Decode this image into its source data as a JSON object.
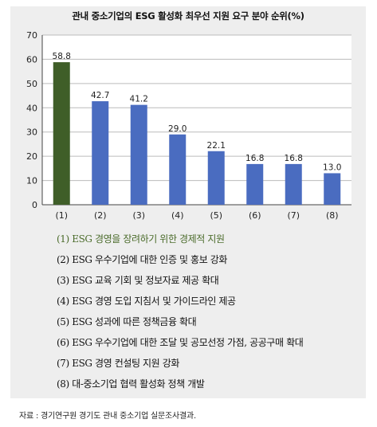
{
  "chart_data": {
    "type": "bar",
    "title": "관내 중소기업의 ESG 활성화 최우선 지원 요구 분야 순위(%)",
    "categories": [
      "(1)",
      "(2)",
      "(3)",
      "(4)",
      "(5)",
      "(6)",
      "(7)",
      "(8)"
    ],
    "values": [
      58.8,
      42.7,
      41.2,
      29.0,
      22.1,
      16.8,
      16.8,
      13.0
    ],
    "value_labels": [
      "58.8",
      "42.7",
      "41.2",
      "29.0",
      "22.1",
      "16.8",
      "16.8",
      "13.0"
    ],
    "ylim": [
      0,
      70
    ],
    "yticks": [
      "0",
      "10",
      "20",
      "30",
      "40",
      "50",
      "60",
      "70"
    ],
    "grid": true,
    "colors": {
      "highlight": "#3f5e28",
      "bar": "#4a6cc0",
      "grid": "#bcbcbc"
    },
    "highlight_index": 0,
    "legend_items": [
      "(1) ESG 경영을 장려하기 위한 경제적 지원",
      "(2) ESG 우수기업에 대한 인증 및 홍보 강화",
      "(3) ESG 교육 기회 및 정보자료 제공 확대",
      "(4) ESG 경영 도입 지침서 및 가이드라인 제공",
      "(5) ESG 성과에 따른 정책금융 확대",
      "(6) ESG 우수기업에 대한 조달 및 공모선정 가점, 공공구매 확대",
      "(7) ESG 경영 컨설팅 지원 강화",
      "(8) 대-중소기업 협력 활성화 정책 개발"
    ]
  },
  "source_note": "자료 : 경기연구원 경기도 관내 중소기업 실문조사결과."
}
